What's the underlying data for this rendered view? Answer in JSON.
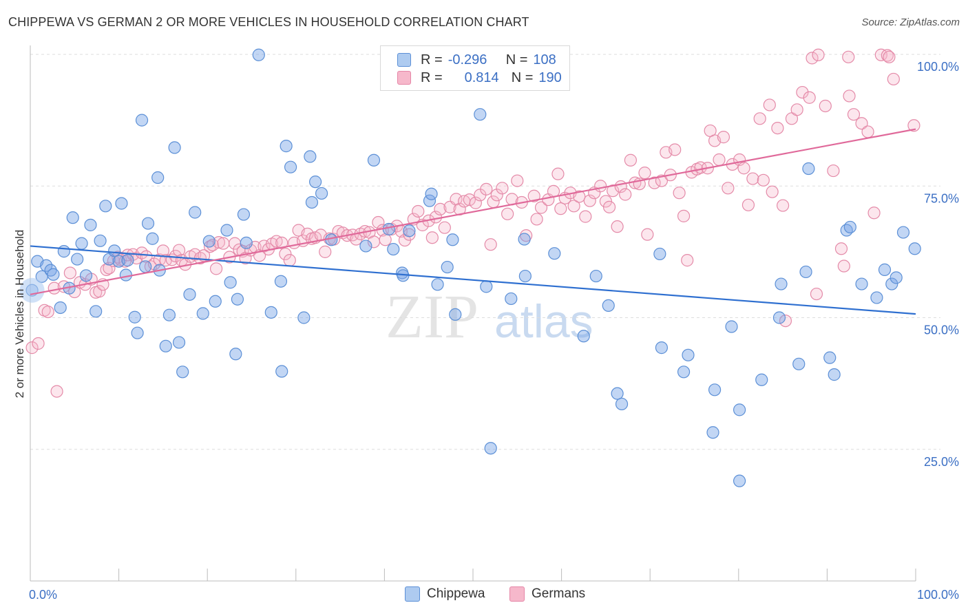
{
  "title": "CHIPPEWA VS GERMAN 2 OR MORE VEHICLES IN HOUSEHOLD CORRELATION CHART",
  "source": "Source: ZipAtlas.com",
  "watermark": {
    "zip": "ZIP",
    "atlas": "atlas"
  },
  "legend": {
    "r_label": "R =",
    "n_label": "N =",
    "rows": [
      {
        "r": "-0.296",
        "n": "108",
        "fill": "#aecbf0",
        "stroke": "#5b8fd6"
      },
      {
        "r": "0.814",
        "n": "190",
        "fill": "#f6b8cb",
        "stroke": "#e585a6"
      }
    ]
  },
  "colors": {
    "chippewa_fill": "rgba(120,165,230,0.45)",
    "chippewa_stroke": "#5b8fd6",
    "chippewa_line": "#2e6fd0",
    "germans_fill": "rgba(246,184,203,0.35)",
    "germans_stroke": "#e48aa8",
    "germans_line": "#e0699a",
    "tick_label": "#3b6fc4",
    "grid": "#dddddd"
  },
  "chart_data": {
    "type": "scatter",
    "title": "CHIPPEWA VS GERMAN 2 OR MORE VEHICLES IN HOUSEHOLD CORRELATION CHART",
    "xlabel": "",
    "ylabel": "2 or more Vehicles in Household",
    "xlim": [
      0,
      100
    ],
    "ylim": [
      0,
      100
    ],
    "x_tick_labels": [
      "0.0%",
      "100.0%"
    ],
    "y_ticks": [
      25,
      50,
      75,
      100
    ],
    "y_tick_labels": [
      "25.0%",
      "50.0%",
      "75.0%",
      "100.0%"
    ],
    "grid": true,
    "legend_position": "bottom",
    "series": [
      {
        "name": "Chippewa",
        "R": -0.296,
        "N": 108,
        "trend": {
          "x": [
            0,
            100
          ],
          "y": [
            63.6,
            50.7
          ]
        },
        "points": [
          [
            0.2,
            55.2
          ],
          [
            0.8,
            60.7
          ],
          [
            1.3,
            57.8
          ],
          [
            1.8,
            59.9
          ],
          [
            2.3,
            59.0
          ],
          [
            2.6,
            58.2
          ],
          [
            3.4,
            51.9
          ],
          [
            3.8,
            62.6
          ],
          [
            4.4,
            55.6
          ],
          [
            4.8,
            69.0
          ],
          [
            5.3,
            61.1
          ],
          [
            5.8,
            64.1
          ],
          [
            6.3,
            58.0
          ],
          [
            6.8,
            67.6
          ],
          [
            7.4,
            51.2
          ],
          [
            7.9,
            64.6
          ],
          [
            8.5,
            71.2
          ],
          [
            8.9,
            61.1
          ],
          [
            9.5,
            62.7
          ],
          [
            10.0,
            60.7
          ],
          [
            10.3,
            71.7
          ],
          [
            10.8,
            58.1
          ],
          [
            11.0,
            60.9
          ],
          [
            11.8,
            50.1
          ],
          [
            12.1,
            47.1
          ],
          [
            12.6,
            87.5
          ],
          [
            13.0,
            59.7
          ],
          [
            13.3,
            67.9
          ],
          [
            13.8,
            65.0
          ],
          [
            14.4,
            76.6
          ],
          [
            14.6,
            59.0
          ],
          [
            15.3,
            44.6
          ],
          [
            15.7,
            50.5
          ],
          [
            16.3,
            82.3
          ],
          [
            16.8,
            45.3
          ],
          [
            17.2,
            39.7
          ],
          [
            18.0,
            54.4
          ],
          [
            18.6,
            70.0
          ],
          [
            19.5,
            50.8
          ],
          [
            20.2,
            64.5
          ],
          [
            20.9,
            53.1
          ],
          [
            22.2,
            66.6
          ],
          [
            22.6,
            56.7
          ],
          [
            23.2,
            43.1
          ],
          [
            23.4,
            53.5
          ],
          [
            24.1,
            69.6
          ],
          [
            24.4,
            64.2
          ],
          [
            25.8,
            99.9
          ],
          [
            27.2,
            51.0
          ],
          [
            28.3,
            56.9
          ],
          [
            28.4,
            39.8
          ],
          [
            28.9,
            82.6
          ],
          [
            29.4,
            78.6
          ],
          [
            30.9,
            50.0
          ],
          [
            31.6,
            80.6
          ],
          [
            31.8,
            71.9
          ],
          [
            32.2,
            75.8
          ],
          [
            32.9,
            73.6
          ],
          [
            34.0,
            64.8
          ],
          [
            37.9,
            63.6
          ],
          [
            38.8,
            79.9
          ],
          [
            40.5,
            66.8
          ],
          [
            41.0,
            63.0
          ],
          [
            42.0,
            58.5
          ],
          [
            42.1,
            58.0
          ],
          [
            42.8,
            66.5
          ],
          [
            45.1,
            72.2
          ],
          [
            45.3,
            73.5
          ],
          [
            46.0,
            56.3
          ],
          [
            47.1,
            59.6
          ],
          [
            47.7,
            64.8
          ],
          [
            48.0,
            50.6
          ],
          [
            50.8,
            88.6
          ],
          [
            51.5,
            55.9
          ],
          [
            52.0,
            25.2
          ],
          [
            54.3,
            53.6
          ],
          [
            55.8,
            64.9
          ],
          [
            55.9,
            57.9
          ],
          [
            59.2,
            62.2
          ],
          [
            63.9,
            57.9
          ],
          [
            62.5,
            46.5
          ],
          [
            65.3,
            52.3
          ],
          [
            66.3,
            35.6
          ],
          [
            66.8,
            33.6
          ],
          [
            71.1,
            62.1
          ],
          [
            71.3,
            44.3
          ],
          [
            73.8,
            39.7
          ],
          [
            74.3,
            42.9
          ],
          [
            77.3,
            36.3
          ],
          [
            77.1,
            28.2
          ],
          [
            79.2,
            48.3
          ],
          [
            80.1,
            32.5
          ],
          [
            80.1,
            19.0
          ],
          [
            82.6,
            38.2
          ],
          [
            84.6,
            50.0
          ],
          [
            84.8,
            56.4
          ],
          [
            86.8,
            41.2
          ],
          [
            87.6,
            58.7
          ],
          [
            87.9,
            78.3
          ],
          [
            90.3,
            42.4
          ],
          [
            90.8,
            39.2
          ],
          [
            92.2,
            66.6
          ],
          [
            92.6,
            67.2
          ],
          [
            93.9,
            56.4
          ],
          [
            95.6,
            53.8
          ],
          [
            96.5,
            59.1
          ],
          [
            97.3,
            56.4
          ],
          [
            97.8,
            57.6
          ],
          [
            98.6,
            66.2
          ],
          [
            99.9,
            63.1
          ]
        ]
      },
      {
        "name": "Germans",
        "R": 0.814,
        "N": 190,
        "trend": {
          "x": [
            0,
            100
          ],
          "y": [
            54.4,
            85.8
          ]
        },
        "points": [
          [
            0.2,
            44.3
          ],
          [
            0.9,
            45.1
          ],
          [
            1.6,
            51.4
          ],
          [
            2.0,
            51.1
          ],
          [
            2.7,
            55.6
          ],
          [
            3.0,
            36.0
          ],
          [
            3.8,
            55.9
          ],
          [
            4.5,
            58.5
          ],
          [
            5.0,
            54.9
          ],
          [
            5.6,
            56.7
          ],
          [
            6.2,
            56.3
          ],
          [
            6.9,
            57.3
          ],
          [
            7.4,
            54.8
          ],
          [
            7.8,
            55.0
          ],
          [
            8.2,
            56.3
          ],
          [
            8.6,
            59.1
          ],
          [
            8.9,
            59.4
          ],
          [
            9.4,
            60.8
          ],
          [
            9.9,
            61.5
          ],
          [
            10.2,
            61.0
          ],
          [
            10.7,
            60.7
          ],
          [
            11.0,
            61.9
          ],
          [
            11.6,
            62.0
          ],
          [
            12.0,
            61.3
          ],
          [
            12.6,
            62.3
          ],
          [
            13.1,
            61.6
          ],
          [
            13.6,
            59.7
          ],
          [
            14.0,
            60.2
          ],
          [
            14.6,
            61.0
          ],
          [
            15.0,
            62.7
          ],
          [
            15.3,
            60.9
          ],
          [
            16.0,
            61.0
          ],
          [
            16.4,
            61.7
          ],
          [
            16.8,
            62.8
          ],
          [
            17.1,
            60.9
          ],
          [
            17.5,
            60.1
          ],
          [
            18.1,
            61.6
          ],
          [
            18.6,
            62.0
          ],
          [
            19.2,
            61.3
          ],
          [
            19.6,
            61.8
          ],
          [
            20.3,
            63.5
          ],
          [
            20.6,
            63.8
          ],
          [
            21.0,
            59.3
          ],
          [
            21.3,
            64.3
          ],
          [
            21.8,
            64.1
          ],
          [
            22.5,
            61.5
          ],
          [
            23.1,
            64.1
          ],
          [
            23.6,
            62.9
          ],
          [
            24.0,
            62.6
          ],
          [
            24.3,
            61.3
          ],
          [
            24.9,
            62.8
          ],
          [
            25.4,
            63.4
          ],
          [
            25.9,
            61.8
          ],
          [
            26.4,
            63.6
          ],
          [
            26.9,
            63.0
          ],
          [
            27.3,
            64.0
          ],
          [
            27.8,
            64.5
          ],
          [
            28.4,
            64.2
          ],
          [
            28.8,
            62.1
          ],
          [
            29.3,
            60.9
          ],
          [
            29.8,
            64.2
          ],
          [
            30.3,
            66.6
          ],
          [
            30.8,
            64.6
          ],
          [
            31.3,
            65.9
          ],
          [
            31.8,
            65.0
          ],
          [
            32.2,
            65.2
          ],
          [
            32.8,
            65.7
          ],
          [
            33.3,
            62.5
          ],
          [
            33.8,
            65.0
          ],
          [
            34.3,
            64.9
          ],
          [
            34.8,
            66.4
          ],
          [
            35.3,
            66.1
          ],
          [
            35.8,
            65.6
          ],
          [
            36.4,
            65.7
          ],
          [
            36.8,
            64.9
          ],
          [
            37.3,
            65.9
          ],
          [
            37.8,
            66.4
          ],
          [
            38.3,
            66.2
          ],
          [
            38.8,
            64.4
          ],
          [
            39.3,
            68.1
          ],
          [
            39.8,
            66.6
          ],
          [
            40.1,
            64.8
          ],
          [
            40.8,
            66.8
          ],
          [
            41.4,
            67.4
          ],
          [
            41.9,
            66.4
          ],
          [
            42.3,
            64.7
          ],
          [
            42.8,
            65.8
          ],
          [
            43.3,
            68.7
          ],
          [
            43.8,
            70.2
          ],
          [
            44.3,
            67.6
          ],
          [
            45.0,
            68.4
          ],
          [
            45.4,
            65.2
          ],
          [
            45.8,
            69.1
          ],
          [
            46.3,
            70.6
          ],
          [
            46.8,
            67.1
          ],
          [
            47.4,
            71.0
          ],
          [
            48.1,
            72.5
          ],
          [
            48.5,
            70.6
          ],
          [
            49.0,
            72.1
          ],
          [
            49.6,
            72.4
          ],
          [
            50.3,
            71.8
          ],
          [
            50.8,
            73.3
          ],
          [
            51.5,
            74.4
          ],
          [
            52.0,
            63.9
          ],
          [
            52.3,
            72.0
          ],
          [
            52.7,
            73.3
          ],
          [
            53.3,
            74.6
          ],
          [
            53.9,
            69.7
          ],
          [
            54.4,
            72.5
          ],
          [
            55.0,
            76.0
          ],
          [
            55.5,
            71.9
          ],
          [
            56.0,
            65.6
          ],
          [
            56.9,
            73.1
          ],
          [
            57.2,
            68.7
          ],
          [
            57.7,
            70.9
          ],
          [
            58.5,
            72.4
          ],
          [
            59.1,
            74.0
          ],
          [
            59.6,
            77.3
          ],
          [
            59.9,
            70.7
          ],
          [
            60.4,
            72.7
          ],
          [
            61.0,
            73.7
          ],
          [
            61.4,
            71.2
          ],
          [
            62.0,
            73.0
          ],
          [
            62.7,
            69.2
          ],
          [
            63.2,
            72.2
          ],
          [
            63.7,
            73.7
          ],
          [
            64.4,
            75.0
          ],
          [
            65.0,
            72.1
          ],
          [
            65.4,
            71.0
          ],
          [
            65.8,
            74.1
          ],
          [
            66.3,
            67.3
          ],
          [
            66.7,
            74.9
          ],
          [
            67.2,
            73.4
          ],
          [
            67.8,
            79.9
          ],
          [
            68.3,
            75.6
          ],
          [
            68.8,
            75.4
          ],
          [
            69.4,
            77.5
          ],
          [
            69.7,
            65.8
          ],
          [
            70.5,
            75.6
          ],
          [
            71.3,
            76.0
          ],
          [
            71.8,
            81.4
          ],
          [
            72.3,
            77.1
          ],
          [
            72.8,
            81.9
          ],
          [
            73.3,
            73.7
          ],
          [
            73.8,
            69.3
          ],
          [
            74.2,
            60.9
          ],
          [
            74.7,
            77.6
          ],
          [
            75.3,
            78.2
          ],
          [
            75.7,
            78.5
          ],
          [
            76.5,
            78.4
          ],
          [
            76.8,
            85.5
          ],
          [
            77.3,
            83.6
          ],
          [
            77.8,
            80.0
          ],
          [
            78.3,
            84.3
          ],
          [
            78.8,
            74.6
          ],
          [
            79.3,
            79.1
          ],
          [
            80.1,
            80.0
          ],
          [
            80.6,
            78.4
          ],
          [
            81.1,
            71.4
          ],
          [
            81.6,
            76.4
          ],
          [
            82.4,
            87.8
          ],
          [
            82.8,
            76.1
          ],
          [
            83.5,
            90.4
          ],
          [
            83.8,
            73.9
          ],
          [
            84.4,
            86.0
          ],
          [
            85.0,
            71.3
          ],
          [
            85.3,
            49.4
          ],
          [
            86.0,
            87.8
          ],
          [
            86.6,
            89.5
          ],
          [
            87.2,
            92.8
          ],
          [
            88.0,
            91.8
          ],
          [
            88.3,
            99.3
          ],
          [
            88.8,
            54.5
          ],
          [
            89.0,
            99.9
          ],
          [
            89.8,
            90.2
          ],
          [
            90.7,
            77.9
          ],
          [
            91.6,
            63.1
          ],
          [
            91.9,
            59.8
          ],
          [
            92.4,
            99.5
          ],
          [
            92.5,
            92.1
          ],
          [
            93.0,
            88.6
          ],
          [
            93.9,
            86.9
          ],
          [
            94.6,
            85.3
          ],
          [
            95.3,
            69.9
          ],
          [
            96.1,
            99.9
          ],
          [
            96.8,
            99.8
          ],
          [
            97.0,
            99.5
          ],
          [
            97.5,
            95.3
          ],
          [
            99.8,
            86.5
          ]
        ]
      }
    ]
  }
}
